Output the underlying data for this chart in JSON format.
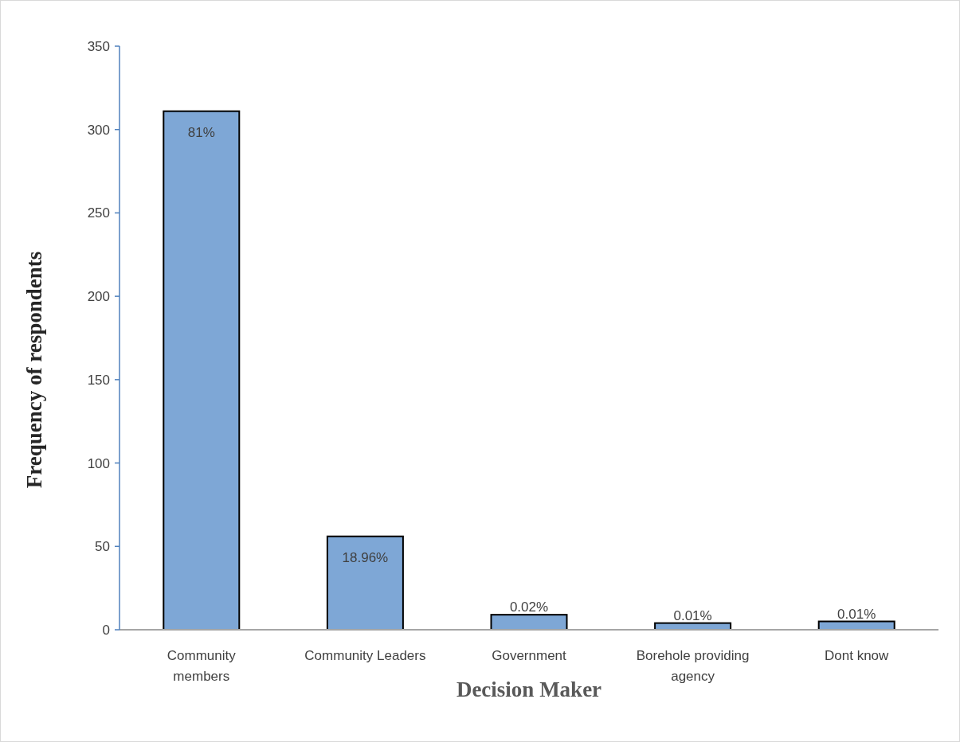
{
  "chart_data": {
    "type": "bar",
    "xlabel": "Decision Maker",
    "ylabel": "Frequency of respondents",
    "categories": [
      "Community members",
      "Community Leaders",
      "Government",
      "Borehole providing agency",
      "Dont know"
    ],
    "values": [
      311,
      56,
      9,
      4,
      5
    ],
    "annotations": [
      {
        "text": "81%",
        "x": "Community members",
        "y": 311
      },
      {
        "text": "18.96%",
        "x": "Community Leaders",
        "y": 56
      },
      {
        "text": "0.02%",
        "x": "Government",
        "y": 9
      },
      {
        "text": "0.01%",
        "x": "Borehole providing agency",
        "y": 4
      },
      {
        "text": "0.01%",
        "x": "Dont know",
        "y": 5
      }
    ],
    "color": "#7ea7d6",
    "ylim": [
      0,
      350
    ],
    "yticks": [
      0,
      50,
      100,
      150,
      200,
      250,
      300,
      350
    ],
    "grid": false
  }
}
